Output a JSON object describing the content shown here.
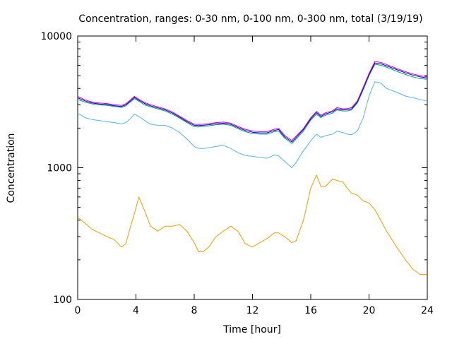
{
  "chart_data": {
    "type": "line",
    "title": "Concentration, ranges: 0-30 nm, 0-100 nm, 0-300 nm, total (3/19/19)",
    "xlabel": "Time [hour]",
    "ylabel": "Concentration",
    "xlim": [
      0,
      24
    ],
    "ylim": [
      100,
      10000
    ],
    "yscale": "log",
    "grid": false,
    "xticks": [
      0,
      4,
      8,
      12,
      16,
      20,
      24
    ],
    "xtick_labels": [
      "0",
      "4",
      "8",
      "12",
      "16",
      "20",
      "24"
    ],
    "yticks": [
      100,
      1000,
      10000
    ],
    "ytick_labels": [
      "100",
      "1000",
      "10000"
    ],
    "x": [
      0,
      0.5,
      1,
      1.5,
      2,
      2.5,
      3,
      3.3,
      3.6,
      3.9,
      4.2,
      4.6,
      5,
      5.5,
      6,
      6.5,
      7,
      7.5,
      8,
      8.3,
      8.6,
      9,
      9.5,
      10,
      10.5,
      11,
      11.5,
      12,
      12.5,
      13,
      13.5,
      13.8,
      14.2,
      14.7,
      15,
      15.5,
      16,
      16.4,
      16.7,
      17,
      17.5,
      17.8,
      18.2,
      18.5,
      18.8,
      19.2,
      19.6,
      20,
      20.4,
      20.8,
      21.2,
      22,
      22.5,
      23,
      23.5,
      24
    ],
    "series": [
      {
        "color": "#e6a000",
        "values": [
          420,
          380,
          340,
          320,
          300,
          285,
          250,
          265,
          350,
          450,
          600,
          470,
          360,
          330,
          360,
          360,
          370,
          330,
          270,
          230,
          230,
          250,
          300,
          330,
          360,
          330,
          265,
          250,
          270,
          290,
          320,
          320,
          300,
          270,
          280,
          400,
          700,
          880,
          720,
          720,
          820,
          800,
          780,
          700,
          640,
          620,
          560,
          540,
          480,
          400,
          330,
          240,
          200,
          170,
          155,
          155
        ]
      },
      {
        "color": "#56b4e9",
        "values": [
          2600,
          2400,
          2320,
          2280,
          2240,
          2200,
          2150,
          2200,
          2350,
          2550,
          2450,
          2280,
          2140,
          2100,
          2100,
          2000,
          1850,
          1650,
          1450,
          1400,
          1400,
          1420,
          1450,
          1480,
          1400,
          1300,
          1240,
          1220,
          1200,
          1180,
          1250,
          1230,
          1120,
          1000,
          1100,
          1350,
          1600,
          1800,
          1700,
          1750,
          1800,
          1900,
          1850,
          1800,
          1780,
          1900,
          2400,
          3500,
          4500,
          4400,
          4000,
          3700,
          3500,
          3400,
          3300,
          3200
        ]
      },
      {
        "color": "#009e73",
        "values": [
          3300,
          3150,
          3050,
          3000,
          2980,
          2920,
          2870,
          2950,
          3150,
          3350,
          3200,
          3000,
          2900,
          2800,
          2700,
          2550,
          2380,
          2200,
          2050,
          2040,
          2060,
          2080,
          2120,
          2140,
          2100,
          1980,
          1880,
          1820,
          1800,
          1800,
          1880,
          1900,
          1680,
          1530,
          1650,
          1900,
          2300,
          2550,
          2400,
          2500,
          2600,
          2750,
          2700,
          2700,
          2750,
          3100,
          3900,
          5000,
          6100,
          6000,
          5800,
          5350,
          5100,
          4900,
          4750,
          4700
        ]
      },
      {
        "color": "#0000cc",
        "values": [
          3400,
          3220,
          3100,
          3050,
          3020,
          2960,
          2920,
          3000,
          3200,
          3420,
          3250,
          3070,
          2950,
          2850,
          2750,
          2600,
          2420,
          2240,
          2100,
          2090,
          2100,
          2120,
          2160,
          2180,
          2140,
          2020,
          1920,
          1860,
          1840,
          1840,
          1920,
          1950,
          1720,
          1570,
          1700,
          1950,
          2350,
          2620,
          2450,
          2560,
          2660,
          2800,
          2750,
          2760,
          2800,
          3160,
          4000,
          5100,
          6250,
          6150,
          5950,
          5500,
          5250,
          5050,
          4900,
          4800
        ]
      },
      {
        "color": "#cc00cc",
        "values": [
          3480,
          3280,
          3150,
          3100,
          3070,
          3010,
          2970,
          3060,
          3260,
          3480,
          3310,
          3120,
          3010,
          2900,
          2800,
          2650,
          2460,
          2280,
          2140,
          2130,
          2140,
          2160,
          2200,
          2220,
          2180,
          2060,
          1960,
          1900,
          1880,
          1880,
          1960,
          1990,
          1760,
          1610,
          1740,
          1990,
          2400,
          2680,
          2500,
          2610,
          2710,
          2860,
          2800,
          2810,
          2860,
          3220,
          4080,
          5200,
          6400,
          6300,
          6080,
          5620,
          5360,
          5150,
          5000,
          4900
        ]
      }
    ]
  }
}
